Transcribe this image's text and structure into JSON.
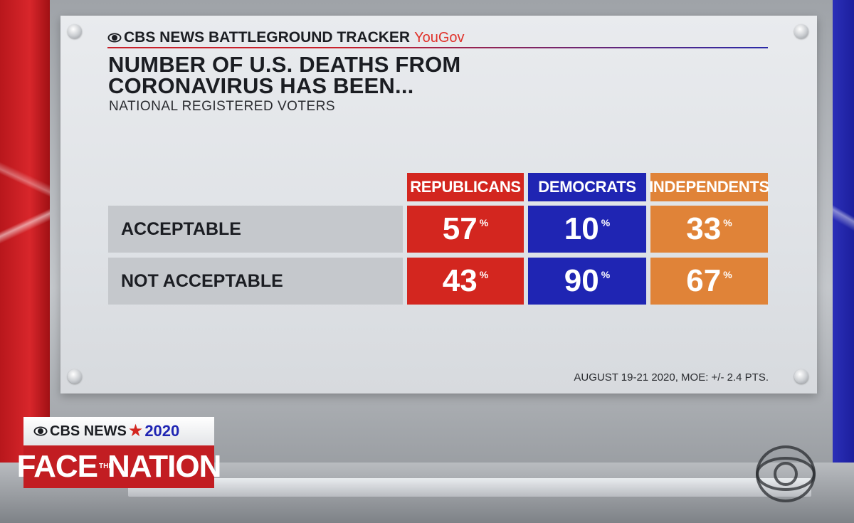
{
  "graphic": {
    "tracker_label": "CBS NEWS BATTLEGROUND TRACKER",
    "partner": "YouGov",
    "headline_line1": "NUMBER OF U.S. DEATHS FROM",
    "headline_line2": "CORONAVIRUS HAS BEEN...",
    "subhead": "NATIONAL REGISTERED VOTERS",
    "columns": [
      "REPUBLICANS",
      "DEMOCRATS",
      "INDEPENDENTS"
    ],
    "rows": [
      {
        "label": "ACCEPTABLE",
        "values": [
          "57",
          "10",
          "33"
        ]
      },
      {
        "label": "NOT ACCEPTABLE",
        "values": [
          "43",
          "90",
          "67"
        ]
      }
    ],
    "percent_sign": "%",
    "footnote": "AUGUST 19-21 2020, MOE: +/- 2.4 PTS.",
    "colors": {
      "republicans": "#d3261f",
      "democrats": "#1f25b3",
      "independents": "#e08338"
    }
  },
  "show_bug": {
    "network": "CBS NEWS",
    "year": "2020",
    "title_left": "FACE",
    "title_small": "THE",
    "title_right": "NATION"
  },
  "icons": [
    "cbs-eye-icon",
    "star-icon",
    "cbs-eye-logo"
  ]
}
